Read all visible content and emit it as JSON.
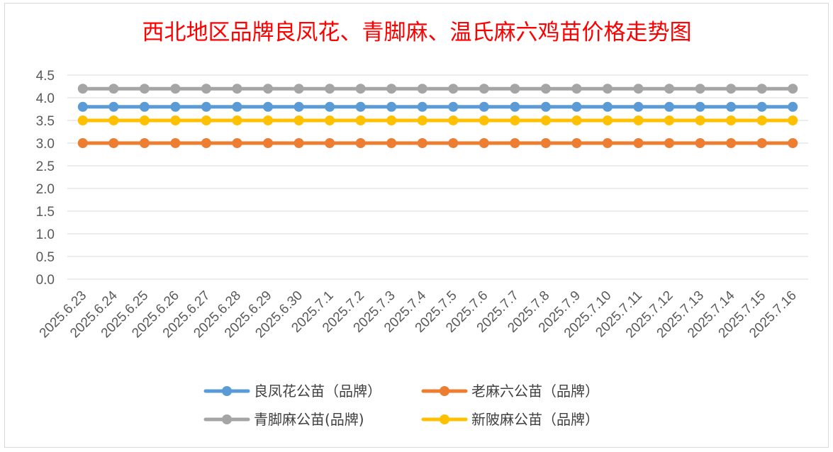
{
  "chart_data": {
    "type": "line",
    "title": "西北地区品牌良凤花、青脚麻、温氏麻六鸡苗价格走势图",
    "categories": [
      "2025.6.23",
      "2025.6.24",
      "2025.6.25",
      "2025.6.26",
      "2025.6.27",
      "2025.6.28",
      "2025.6.29",
      "2025.6.30",
      "2025.7.1",
      "2025.7.2",
      "2025.7.3",
      "2025.7.4",
      "2025.7.5",
      "2025.7.6",
      "2025.7.7",
      "2025.7.8",
      "2025.7.9",
      "2025.7.10",
      "2025.7.11",
      "2025.7.12",
      "2025.7.13",
      "2025.7.14",
      "2025.7.15",
      "2025.7.16"
    ],
    "ylim": [
      0,
      4.5
    ],
    "yticks": [
      "0.0",
      "0.5",
      "1.0",
      "1.5",
      "2.0",
      "2.5",
      "3.0",
      "3.5",
      "4.0",
      "4.5"
    ],
    "grid": true,
    "legend_position": "bottom",
    "series": [
      {
        "name": "良凤花公苗（品牌）",
        "color": "#5b9bd5",
        "values": [
          3.8,
          3.8,
          3.8,
          3.8,
          3.8,
          3.8,
          3.8,
          3.8,
          3.8,
          3.8,
          3.8,
          3.8,
          3.8,
          3.8,
          3.8,
          3.8,
          3.8,
          3.8,
          3.8,
          3.8,
          3.8,
          3.8,
          3.8,
          3.8
        ]
      },
      {
        "name": "老麻六公苗（品牌）",
        "color": "#ed7d31",
        "values": [
          3.0,
          3.0,
          3.0,
          3.0,
          3.0,
          3.0,
          3.0,
          3.0,
          3.0,
          3.0,
          3.0,
          3.0,
          3.0,
          3.0,
          3.0,
          3.0,
          3.0,
          3.0,
          3.0,
          3.0,
          3.0,
          3.0,
          3.0,
          3.0
        ]
      },
      {
        "name": "青脚麻公苗(品牌)",
        "color": "#a5a5a5",
        "values": [
          4.2,
          4.2,
          4.2,
          4.2,
          4.2,
          4.2,
          4.2,
          4.2,
          4.2,
          4.2,
          4.2,
          4.2,
          4.2,
          4.2,
          4.2,
          4.2,
          4.2,
          4.2,
          4.2,
          4.2,
          4.2,
          4.2,
          4.2,
          4.2
        ]
      },
      {
        "name": "新陂麻公苗（品牌）",
        "color": "#ffc000",
        "values": [
          3.5,
          3.5,
          3.5,
          3.5,
          3.5,
          3.5,
          3.5,
          3.5,
          3.5,
          3.5,
          3.5,
          3.5,
          3.5,
          3.5,
          3.5,
          3.5,
          3.5,
          3.5,
          3.5,
          3.5,
          3.5,
          3.5,
          3.5,
          3.5
        ]
      }
    ]
  }
}
